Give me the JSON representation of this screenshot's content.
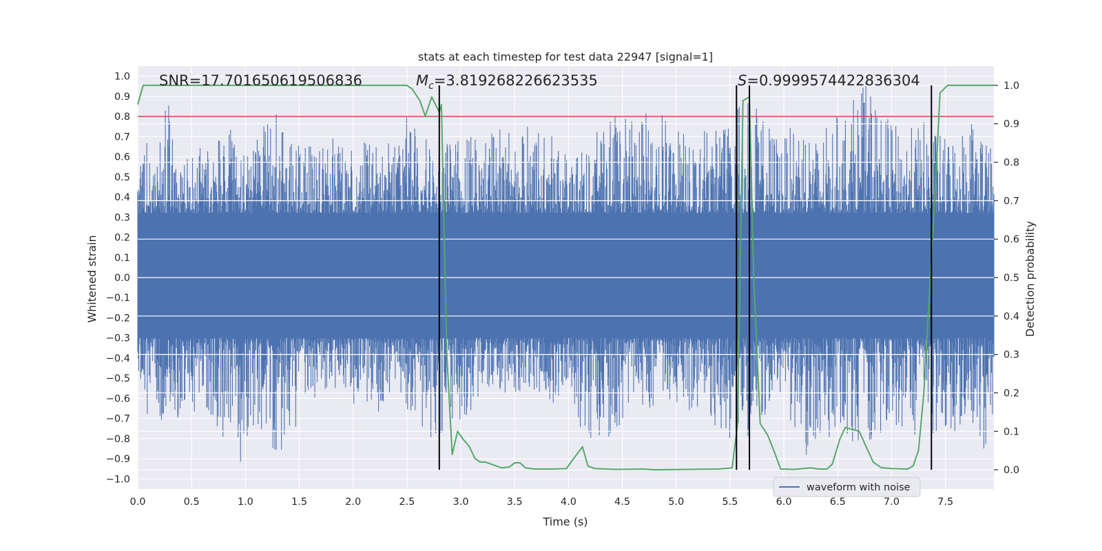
{
  "chart_data": {
    "type": "line",
    "title": "stats at each timestep for test data 22947 [signal=1]",
    "xlabel": "Time (s)",
    "ylabel": "Whitened strain",
    "y2label": "Detection probability",
    "xlim": [
      0.0,
      7.95
    ],
    "ylim": [
      -1.05,
      1.05
    ],
    "y2lim": [
      -0.05,
      1.05
    ],
    "x_ticks": [
      0.0,
      0.5,
      1.0,
      1.5,
      2.0,
      2.5,
      3.0,
      3.5,
      4.0,
      4.5,
      5.0,
      5.5,
      6.0,
      6.5,
      7.0,
      7.5
    ],
    "x_tick_labels": [
      "0.0",
      "0.5",
      "1.0",
      "1.5",
      "2.0",
      "2.5",
      "3.0",
      "3.5",
      "4.0",
      "4.5",
      "5.0",
      "5.5",
      "6.0",
      "6.5",
      "7.0",
      "7.5"
    ],
    "y_ticks": [
      -1.0,
      -0.9,
      -0.8,
      -0.7,
      -0.6,
      -0.5,
      -0.4,
      -0.3,
      -0.2,
      -0.1,
      0.0,
      0.1,
      0.2,
      0.3,
      0.4,
      0.5,
      0.6,
      0.7,
      0.8,
      0.9,
      1.0
    ],
    "y_tick_labels": [
      "−1.0",
      "−0.9",
      "−0.8",
      "−0.7",
      "−0.6",
      "−0.5",
      "−0.4",
      "−0.3",
      "−0.2",
      "−0.1",
      "0.0",
      "0.1",
      "0.2",
      "0.3",
      "0.4",
      "0.5",
      "0.6",
      "0.7",
      "0.8",
      "0.9",
      "1.0"
    ],
    "y2_ticks": [
      0.0,
      0.1,
      0.2,
      0.3,
      0.4,
      0.5,
      0.6,
      0.7,
      0.8,
      0.9,
      1.0
    ],
    "y2_tick_labels": [
      "0.0",
      "0.1",
      "0.2",
      "0.3",
      "0.4",
      "0.5",
      "0.6",
      "0.7",
      "0.8",
      "0.9",
      "1.0"
    ],
    "grid": true,
    "legend_position": "lower-right",
    "series": [
      {
        "name": "waveform with noise",
        "color": "#4c72b0",
        "envelope_upper": [
          [
            0.0,
            0.6
          ],
          [
            0.02,
            0.82
          ],
          [
            0.15,
            0.55
          ],
          [
            0.28,
            0.91
          ],
          [
            0.35,
            0.62
          ],
          [
            0.5,
            0.65
          ],
          [
            0.7,
            0.7
          ],
          [
            0.9,
            0.76
          ],
          [
            1.0,
            0.62
          ],
          [
            1.27,
            0.84
          ],
          [
            1.4,
            0.66
          ],
          [
            1.7,
            0.74
          ],
          [
            2.0,
            0.66
          ],
          [
            2.3,
            0.72
          ],
          [
            2.45,
            0.75
          ],
          [
            2.5,
            0.84
          ],
          [
            2.6,
            0.73
          ],
          [
            2.8,
            0.67
          ],
          [
            3.0,
            0.68
          ],
          [
            3.2,
            0.74
          ],
          [
            3.5,
            0.76
          ],
          [
            3.8,
            0.77
          ],
          [
            4.0,
            0.6
          ],
          [
            4.45,
            0.83
          ],
          [
            4.6,
            0.82
          ],
          [
            4.84,
            0.86
          ],
          [
            5.0,
            0.75
          ],
          [
            5.2,
            0.72
          ],
          [
            5.5,
            0.82
          ],
          [
            5.65,
            0.93
          ],
          [
            5.8,
            0.8
          ],
          [
            6.0,
            0.7
          ],
          [
            6.17,
            0.83
          ],
          [
            6.3,
            0.7
          ],
          [
            6.5,
            0.81
          ],
          [
            6.8,
            1.0
          ],
          [
            6.9,
            0.82
          ],
          [
            7.1,
            0.73
          ],
          [
            7.3,
            0.78
          ],
          [
            7.5,
            0.7
          ],
          [
            7.8,
            0.85
          ],
          [
            7.95,
            0.62
          ]
        ],
        "envelope_lower": [
          [
            0.0,
            -0.53
          ],
          [
            0.15,
            -0.84
          ],
          [
            0.3,
            -0.73
          ],
          [
            0.6,
            -0.66
          ],
          [
            0.96,
            -0.93
          ],
          [
            1.1,
            -0.72
          ],
          [
            1.27,
            -0.9
          ],
          [
            1.45,
            -0.88
          ],
          [
            1.6,
            -0.6
          ],
          [
            1.9,
            -0.58
          ],
          [
            2.2,
            -0.72
          ],
          [
            2.4,
            -0.52
          ],
          [
            2.6,
            -0.78
          ],
          [
            2.8,
            -0.83
          ],
          [
            2.95,
            -0.75
          ],
          [
            3.2,
            -0.6
          ],
          [
            3.5,
            -0.58
          ],
          [
            3.75,
            -0.6
          ],
          [
            4.0,
            -0.66
          ],
          [
            4.15,
            -0.8
          ],
          [
            4.4,
            -0.82
          ],
          [
            4.6,
            -0.6
          ],
          [
            4.8,
            -0.68
          ],
          [
            5.0,
            -0.62
          ],
          [
            5.3,
            -0.72
          ],
          [
            5.55,
            -0.88
          ],
          [
            5.75,
            -0.72
          ],
          [
            6.0,
            -0.63
          ],
          [
            6.17,
            -0.9
          ],
          [
            6.4,
            -0.8
          ],
          [
            6.6,
            -0.83
          ],
          [
            6.8,
            -0.82
          ],
          [
            7.0,
            -0.73
          ],
          [
            7.2,
            -0.79
          ],
          [
            7.5,
            -0.78
          ],
          [
            7.7,
            -0.76
          ],
          [
            7.85,
            -0.89
          ],
          [
            7.95,
            -0.85
          ]
        ]
      },
      {
        "name": "",
        "color": "#55a868",
        "axis": "right",
        "points": [
          [
            0.0,
            0.95
          ],
          [
            0.05,
            1.0
          ],
          [
            2.5,
            1.0
          ],
          [
            2.55,
            0.99
          ],
          [
            2.62,
            0.96
          ],
          [
            2.67,
            0.92
          ],
          [
            2.73,
            0.97
          ],
          [
            2.8,
            0.93
          ],
          [
            2.82,
            0.95
          ],
          [
            2.87,
            0.3
          ],
          [
            2.92,
            0.04
          ],
          [
            2.97,
            0.1
          ],
          [
            3.02,
            0.08
          ],
          [
            3.08,
            0.06
          ],
          [
            3.13,
            0.03
          ],
          [
            3.18,
            0.02
          ],
          [
            3.23,
            0.02
          ],
          [
            3.38,
            0.005
          ],
          [
            3.45,
            0.007
          ],
          [
            3.5,
            0.018
          ],
          [
            3.55,
            0.018
          ],
          [
            3.6,
            0.005
          ],
          [
            3.68,
            0.002
          ],
          [
            3.85,
            0.002
          ],
          [
            3.98,
            0.003
          ],
          [
            4.05,
            0.03
          ],
          [
            4.13,
            0.06
          ],
          [
            4.18,
            0.01
          ],
          [
            4.25,
            0.003
          ],
          [
            4.45,
            0.001
          ],
          [
            4.7,
            0.002
          ],
          [
            4.8,
            0.0
          ],
          [
            5.4,
            0.002
          ],
          [
            5.52,
            0.005
          ],
          [
            5.57,
            0.12
          ],
          [
            5.62,
            0.96
          ],
          [
            5.68,
            0.97
          ],
          [
            5.72,
            0.5
          ],
          [
            5.78,
            0.12
          ],
          [
            5.85,
            0.09
          ],
          [
            5.92,
            0.04
          ],
          [
            5.97,
            0.002
          ],
          [
            6.1,
            0.001
          ],
          [
            6.25,
            0.005
          ],
          [
            6.32,
            0.002
          ],
          [
            6.4,
            0.002
          ],
          [
            6.45,
            0.015
          ],
          [
            6.52,
            0.08
          ],
          [
            6.57,
            0.11
          ],
          [
            6.7,
            0.1
          ],
          [
            6.78,
            0.05
          ],
          [
            6.83,
            0.02
          ],
          [
            6.9,
            0.006
          ],
          [
            7.0,
            0.003
          ],
          [
            7.15,
            0.002
          ],
          [
            7.2,
            0.01
          ],
          [
            7.25,
            0.05
          ],
          [
            7.3,
            0.2
          ],
          [
            7.4,
            0.7
          ],
          [
            7.45,
            0.98
          ],
          [
            7.52,
            1.0
          ],
          [
            7.95,
            1.0
          ]
        ]
      }
    ],
    "threshold_line": {
      "y": 0.8,
      "color": "#c44e52"
    },
    "vertical_markers": [
      2.8,
      5.56,
      5.68,
      7.37
    ],
    "annotations": {
      "snr": "SNR=17.701650619506836",
      "mc_symbol": "M",
      "mc_sub": "c",
      "mc_value": "=3.819268226623535",
      "s_symbol": "S",
      "s_value": "=0.9999574422836304"
    },
    "colors": {
      "plot_bg": "#eaeaf2",
      "grid": "#ffffff",
      "text": "#262626",
      "marker": "#000000"
    }
  }
}
